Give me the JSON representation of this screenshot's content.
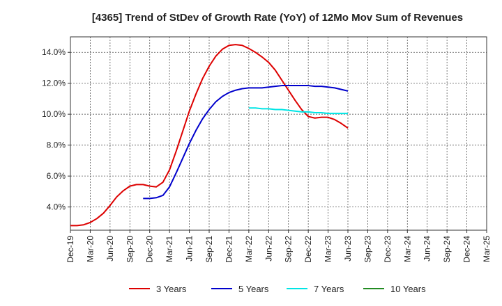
{
  "chart_data": {
    "type": "line",
    "title": "[4365]  Trend of StDev of Growth Rate (YoY) of 12Mo Mov Sum of Revenues",
    "xlabel": "",
    "ylabel": "",
    "x_ticks": [
      "Dec-19",
      "Mar-20",
      "Jun-20",
      "Sep-20",
      "Dec-20",
      "Mar-21",
      "Jun-21",
      "Sep-21",
      "Dec-21",
      "Mar-22",
      "Jun-22",
      "Sep-22",
      "Dec-22",
      "Mar-23",
      "Jun-23",
      "Sep-23",
      "Dec-23",
      "Mar-24",
      "Jun-24",
      "Sep-24",
      "Dec-24",
      "Mar-25"
    ],
    "y_ticks": [
      "4.0%",
      "6.0%",
      "8.0%",
      "10.0%",
      "12.0%",
      "14.0%"
    ],
    "y_tick_values": [
      4,
      6,
      8,
      10,
      12,
      14
    ],
    "ylim": [
      2.5,
      15
    ],
    "grid": true,
    "legend_position": "bottom",
    "series": [
      {
        "name": "3 Years",
        "color": "#dd0000",
        "values": [
          2.8,
          2.8,
          2.85,
          3.0,
          3.25,
          3.6,
          4.1,
          4.65,
          5.05,
          5.35,
          5.45,
          5.45,
          5.35,
          5.3,
          5.6,
          6.4,
          7.6,
          8.9,
          10.2,
          11.3,
          12.3,
          13.1,
          13.75,
          14.2,
          14.45,
          14.5,
          14.45,
          14.25,
          14.0,
          13.7,
          13.35,
          12.85,
          12.2,
          11.55,
          10.9,
          10.3,
          9.85,
          9.75,
          9.8,
          9.8,
          9.65,
          9.4,
          9.1
        ]
      },
      {
        "name": "5 Years",
        "color": "#0000cc",
        "values": [
          null,
          null,
          null,
          null,
          null,
          null,
          null,
          null,
          null,
          null,
          null,
          4.55,
          4.55,
          4.6,
          4.75,
          5.3,
          6.2,
          7.15,
          8.1,
          8.95,
          9.7,
          10.3,
          10.8,
          11.15,
          11.4,
          11.55,
          11.65,
          11.7,
          11.7,
          11.7,
          11.75,
          11.8,
          11.85,
          11.85,
          11.85,
          11.85,
          11.85,
          11.8,
          11.8,
          11.75,
          11.7,
          11.6,
          11.5
        ]
      },
      {
        "name": "7 Years",
        "color": "#00e5e5",
        "values": [
          null,
          null,
          null,
          null,
          null,
          null,
          null,
          null,
          null,
          null,
          null,
          null,
          null,
          null,
          null,
          null,
          null,
          null,
          null,
          null,
          null,
          null,
          null,
          null,
          null,
          null,
          null,
          10.4,
          10.4,
          10.35,
          10.35,
          10.3,
          10.3,
          10.25,
          10.2,
          10.15,
          10.15,
          10.1,
          10.1,
          10.05,
          10.05,
          10.05,
          10.05
        ]
      },
      {
        "name": "10 Years",
        "color": "#228b22",
        "values": []
      }
    ]
  }
}
